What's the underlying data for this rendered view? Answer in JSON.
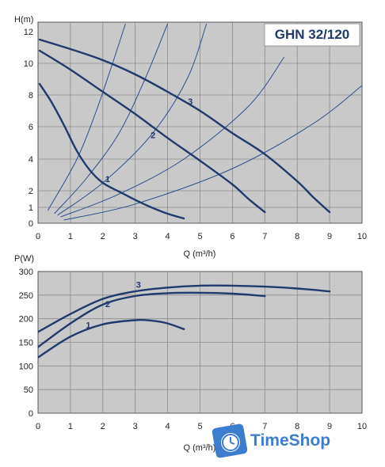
{
  "chart_data": [
    {
      "type": "line",
      "title": "GHN 32/120",
      "ylabel": "H(m)",
      "xlabel": "Q (m³/h)",
      "xlim": [
        0,
        10
      ],
      "ylim": [
        0,
        12
      ],
      "x_ticks": [
        0,
        1,
        2,
        3,
        4,
        5,
        6,
        7,
        8,
        9,
        10
      ],
      "y_ticks": [
        0,
        1,
        2,
        4,
        6,
        8,
        10,
        12
      ],
      "grid": true,
      "series": [
        {
          "name": "1",
          "points": [
            [
              0.05,
              8.7
            ],
            [
              0.4,
              7.6
            ],
            [
              0.8,
              6.1
            ],
            [
              1.2,
              4.5
            ],
            [
              1.6,
              3.3
            ],
            [
              2.0,
              2.5
            ],
            [
              2.5,
              1.95
            ],
            [
              3.0,
              1.45
            ],
            [
              3.5,
              1.0
            ],
            [
              4.0,
              0.6
            ],
            [
              4.5,
              0.3
            ]
          ]
        },
        {
          "name": "2",
          "points": [
            [
              0.05,
              10.8
            ],
            [
              1,
              9.6
            ],
            [
              2,
              8.2
            ],
            [
              3,
              6.8
            ],
            [
              4,
              5.3
            ],
            [
              5,
              3.9
            ],
            [
              6,
              2.4
            ],
            [
              6.5,
              1.5
            ],
            [
              7.0,
              0.7
            ]
          ]
        },
        {
          "name": "3",
          "points": [
            [
              0.05,
              11.5
            ],
            [
              1,
              10.9
            ],
            [
              2,
              10.2
            ],
            [
              3,
              9.3
            ],
            [
              4,
              8.2
            ],
            [
              5,
              7.0
            ],
            [
              6,
              5.6
            ],
            [
              7,
              4.3
            ],
            [
              8,
              2.6
            ],
            [
              8.5,
              1.6
            ],
            [
              9.0,
              0.7
            ]
          ]
        }
      ],
      "system_curves": [
        {
          "points": [
            [
              0.3,
              0.8
            ],
            [
              1.2,
              4.0
            ],
            [
              1.8,
              7.0
            ],
            [
              2.3,
              10.0
            ],
            [
              2.7,
              12.5
            ]
          ]
        },
        {
          "points": [
            [
              0.5,
              0.6
            ],
            [
              1.5,
              2.8
            ],
            [
              2.5,
              5.6
            ],
            [
              3.3,
              9.0
            ],
            [
              4.0,
              12.5
            ]
          ]
        },
        {
          "points": [
            [
              0.6,
              0.5
            ],
            [
              2.0,
              2.5
            ],
            [
              3.5,
              5.5
            ],
            [
              4.6,
              9.0
            ],
            [
              5.2,
              12.5
            ]
          ]
        },
        {
          "points": [
            [
              0.7,
              0.4
            ],
            [
              2.5,
              1.8
            ],
            [
              4.5,
              4.0
            ],
            [
              6.5,
              7.3
            ],
            [
              7.6,
              10.4
            ]
          ]
        },
        {
          "points": [
            [
              0.8,
              0.2
            ],
            [
              3.0,
              1.2
            ],
            [
              6.0,
              3.4
            ],
            [
              8.5,
              6.2
            ],
            [
              10.0,
              8.6
            ]
          ]
        }
      ]
    },
    {
      "type": "line",
      "ylabel": "P(W)",
      "xlabel": "Q (m³/h)",
      "xlim": [
        0,
        10
      ],
      "ylim": [
        0,
        300
      ],
      "x_ticks": [
        0,
        1,
        2,
        3,
        4,
        5,
        6,
        7,
        8,
        9,
        10
      ],
      "y_ticks": [
        0,
        50,
        100,
        150,
        200,
        250,
        300
      ],
      "grid": true,
      "series": [
        {
          "name": "1",
          "points": [
            [
              0,
              118
            ],
            [
              1,
              162
            ],
            [
              2,
              188
            ],
            [
              3,
              197
            ],
            [
              3.5,
              196
            ],
            [
              4,
              190
            ],
            [
              4.5,
              178
            ]
          ]
        },
        {
          "name": "2",
          "points": [
            [
              0,
              140
            ],
            [
              1,
              190
            ],
            [
              2,
              230
            ],
            [
              3,
              248
            ],
            [
              4,
              254
            ],
            [
              5,
              255
            ],
            [
              6,
              253
            ],
            [
              7,
              248
            ]
          ]
        },
        {
          "name": "3",
          "points": [
            [
              0,
              172
            ],
            [
              1,
              210
            ],
            [
              2,
              242
            ],
            [
              3,
              258
            ],
            [
              4,
              266
            ],
            [
              5,
              270
            ],
            [
              6,
              270
            ],
            [
              7,
              268
            ],
            [
              8,
              264
            ],
            [
              9,
              258
            ]
          ]
        }
      ]
    }
  ],
  "watermark": {
    "text": "TimeShop",
    "icon": "clock-tag-icon"
  }
}
